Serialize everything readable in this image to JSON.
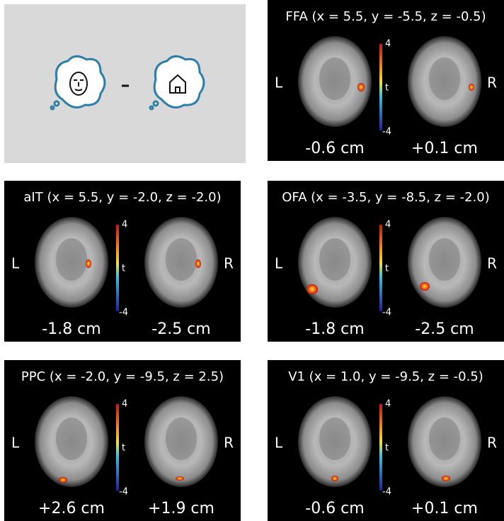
{
  "panels": [
    {
      "title": "FFA (x = 5.5, y = -5.5, z = -0.5)",
      "left": "L",
      "right": "R",
      "colorbar": {
        "max": "4",
        "label": "t",
        "min": "-4"
      },
      "slices": [
        "-0.6 cm",
        "+0.1 cm"
      ]
    },
    {
      "title": "aIT (x = 5.5, y = -2.0, z = -2.0)",
      "left": "L",
      "right": "R",
      "colorbar": {
        "max": "4",
        "label": "t",
        "min": "-4"
      },
      "slices": [
        "-1.8 cm",
        "-2.5 cm"
      ]
    },
    {
      "title": "OFA (x = -3.5, y = -8.5, z = -2.0)",
      "left": "L",
      "right": "R",
      "colorbar": {
        "max": "4",
        "label": "t",
        "min": "-4"
      },
      "slices": [
        "-1.8 cm",
        "-2.5 cm"
      ]
    },
    {
      "title": "PPC (x = -2.0, y = -9.5, z = 2.5)",
      "left": "L",
      "right": "R",
      "colorbar": {
        "max": "4",
        "label": "t",
        "min": "-4"
      },
      "slices": [
        "+2.6 cm",
        "+1.9 cm"
      ]
    },
    {
      "title": "V1 (x = 1.0, y = -9.5, z = -0.5)",
      "left": "L",
      "right": "R",
      "colorbar": {
        "max": "4",
        "label": "t",
        "min": "-4"
      },
      "slices": [
        "-0.6 cm",
        "+0.1 cm"
      ]
    }
  ]
}
